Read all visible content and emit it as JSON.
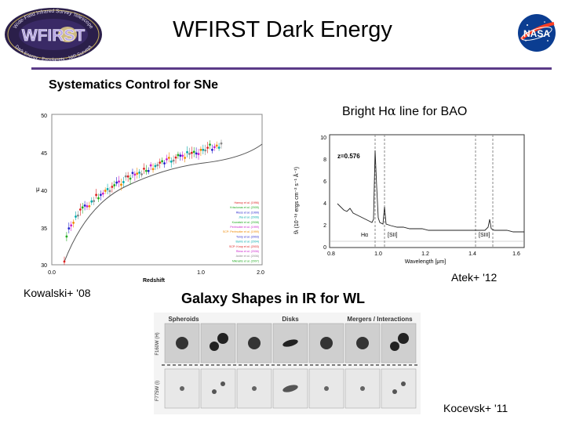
{
  "header": {
    "title": "WFIRST Dark Energy",
    "logo_text": "WFIRST",
    "logo_ring_top": "Wide-Field Infrared Survey Telescope",
    "logo_ring_bottom": "Dark Energy · Exoplanets · NIR Surveys",
    "nasa_logo_text": "NASA"
  },
  "sections": {
    "sne_heading": "Systematics Control for SNe",
    "bao_heading_pre": "Bright H",
    "bao_heading_greek": "α",
    "bao_heading_post": " line for BAO",
    "wl_heading": "Galaxy Shapes in IR for WL"
  },
  "citations": {
    "atek": "Atek+ '12",
    "kowalski": "Kowalski+ '08",
    "kocevsk": "Kocevsk+ '11"
  },
  "hubble_plot": {
    "ylabel": "μ",
    "xlabel": "Redshift",
    "yticks": [
      "50",
      "45",
      "40",
      "35",
      "30"
    ],
    "xticks": [
      "0.0",
      "1.0",
      "2.0"
    ],
    "legend": [
      "Hamuy et al. (1996)",
      "Krisciunas et al. (2005)",
      "Riess et al. (1999)",
      "Jha et al. (2006)",
      "Kowalski et al. (2008)",
      "Perlmutter et al. (1999)",
      "SCP: Perlmutter et al. (1999)",
      "Tonry et al. (2003)",
      "Barris et al. (2004)",
      "SCP: Knop et al. (2003)",
      "Riess et al. (2006)",
      "Astier et al. (2006)",
      "Miknaitis et al. (2007)"
    ]
  },
  "spectrum_plot": {
    "redshift_label": "z=0.576",
    "ylabel": "fλ (10⁻¹⁸ ergs cm⁻² s⁻¹ Å⁻¹)",
    "xlabel": "Wavelength [μm]",
    "yticks": [
      "10",
      "8",
      "6",
      "4",
      "2",
      "0"
    ],
    "xticks": [
      "0.8",
      "1.0",
      "1.2",
      "1.4",
      "1.6"
    ],
    "line_labels": [
      "Hα",
      "[SII]",
      "[SIII]"
    ]
  },
  "galaxy_panel": {
    "column_labels": [
      "Spheroids",
      "Disks",
      "Mergers / Interactions"
    ],
    "row_labels": [
      "F160W (H)",
      "F775W (i)"
    ]
  }
}
